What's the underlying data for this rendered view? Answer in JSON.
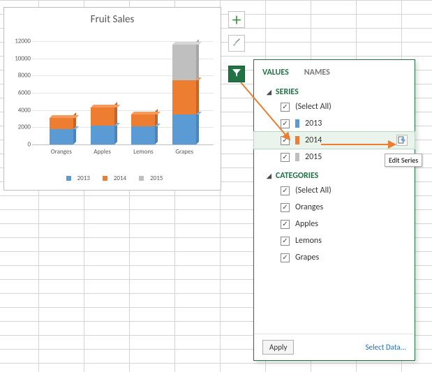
{
  "chart": {
    "title": "Fruit Sales",
    "type": "stacked-bar-3d",
    "categories": [
      "Oranges",
      "Apples",
      "Lemons",
      "Grapes"
    ],
    "series": [
      {
        "name": "2013",
        "color": "#5b9bd5",
        "color_top": "#7cb1e0",
        "color_side": "#4a84b8",
        "values": [
          1800,
          2200,
          2100,
          3500
        ]
      },
      {
        "name": "2014",
        "color": "#ed7d31",
        "color_top": "#f49a5c",
        "color_side": "#c76526",
        "values": [
          1300,
          2100,
          1400,
          4000
        ]
      },
      {
        "name": "2015",
        "color": "#bfbfbf",
        "color_top": "#d6d6d6",
        "color_side": "#a6a6a6",
        "values": [
          0,
          0,
          0,
          4100
        ]
      }
    ],
    "ylim": [
      0,
      12000
    ],
    "ytick_step": 2000,
    "title_fontsize": 15,
    "label_fontsize": 9,
    "background_color": "#ffffff",
    "grid_color": "#e6e6e6"
  },
  "side_buttons": {
    "plus": "+",
    "brush": "brush",
    "filter": "filter"
  },
  "panel": {
    "tabs": {
      "values": "VALUES",
      "names": "NAMES",
      "active": "values"
    },
    "series_header": "SERIES",
    "categories_header": "CATEGORIES",
    "select_all": "(Select All)",
    "series": [
      {
        "label": "2013",
        "color": "#5b9bd5",
        "checked": true
      },
      {
        "label": "2014",
        "color": "#ed7d31",
        "checked": true,
        "highlighted": true
      },
      {
        "label": "2015",
        "color": "#bfbfbf",
        "checked": true
      }
    ],
    "categories": [
      {
        "label": "Oranges",
        "checked": true
      },
      {
        "label": "Apples",
        "checked": true
      },
      {
        "label": "Lemons",
        "checked": true
      },
      {
        "label": "Grapes",
        "checked": true
      }
    ],
    "apply": "Apply",
    "select_data": "Select Data...",
    "edit_tooltip": "Edit Series"
  },
  "annotation_arrow_color": "#ed7d31"
}
